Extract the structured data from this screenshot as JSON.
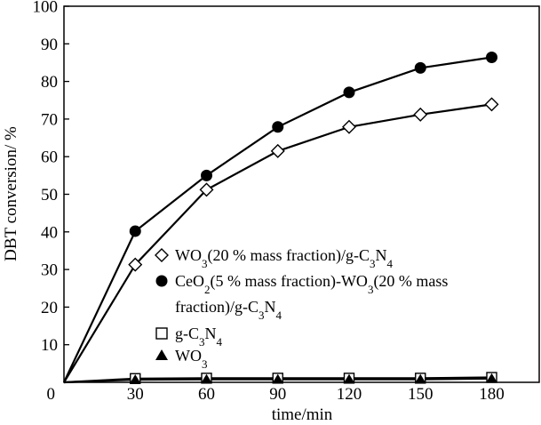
{
  "chart_data": {
    "type": "line",
    "xlabel": "time/min",
    "ylabel": "DBT conversion/ %",
    "xlim": [
      0,
      200
    ],
    "ylim": [
      0,
      100
    ],
    "x_ticks": [
      30,
      60,
      90,
      120,
      150,
      180
    ],
    "x_tick_labels": [
      "30",
      "60",
      "90",
      "120",
      "150",
      "180"
    ],
    "x_origin_label": "0",
    "y_ticks": [
      10,
      20,
      30,
      40,
      50,
      60,
      70,
      80,
      90,
      100
    ],
    "y_tick_labels": [
      "10",
      "20",
      "30",
      "40",
      "50",
      "60",
      "70",
      "80",
      "90",
      "100"
    ],
    "grid": false,
    "legend_position": "center-left",
    "x": [
      0,
      30,
      60,
      90,
      120,
      150,
      180
    ],
    "series": [
      {
        "key": "wo3_gcn",
        "legend": {
          "pre": "WO",
          "sub1": "3",
          "mid": "(20 % mass fraction)/g-C",
          "sub2": "3",
          "mid2": "N",
          "sub3": "4"
        },
        "marker": "diamond-open",
        "values": [
          0,
          31.3,
          51.2,
          61.5,
          67.9,
          71.2,
          73.9
        ]
      },
      {
        "key": "ceo2_wo3_gcn",
        "legend": {
          "line1_pre": "CeO",
          "line1_sub1": "2",
          "line1_mid": "(5 % mass fraction)-WO",
          "line1_sub2": "3",
          "line1_end": "(20 % mass",
          "line2_pre": "fraction)/g-C",
          "line2_sub1": "3",
          "line2_mid": "N",
          "line2_sub2": "4"
        },
        "marker": "circle-filled",
        "values": [
          0,
          40.2,
          55.0,
          67.9,
          77.1,
          83.6,
          86.4
        ]
      },
      {
        "key": "gcn",
        "legend": {
          "pre": "g-C",
          "sub1": "3",
          "mid": "N",
          "sub2": "4"
        },
        "marker": "square-open",
        "values": [
          0,
          1.0,
          1.1,
          1.1,
          1.1,
          1.1,
          1.3
        ]
      },
      {
        "key": "wo3",
        "legend": {
          "pre": "WO",
          "sub1": "3"
        },
        "marker": "triangle-filled",
        "values": [
          0,
          0.7,
          0.8,
          0.8,
          0.8,
          0.8,
          1.0
        ]
      }
    ]
  }
}
